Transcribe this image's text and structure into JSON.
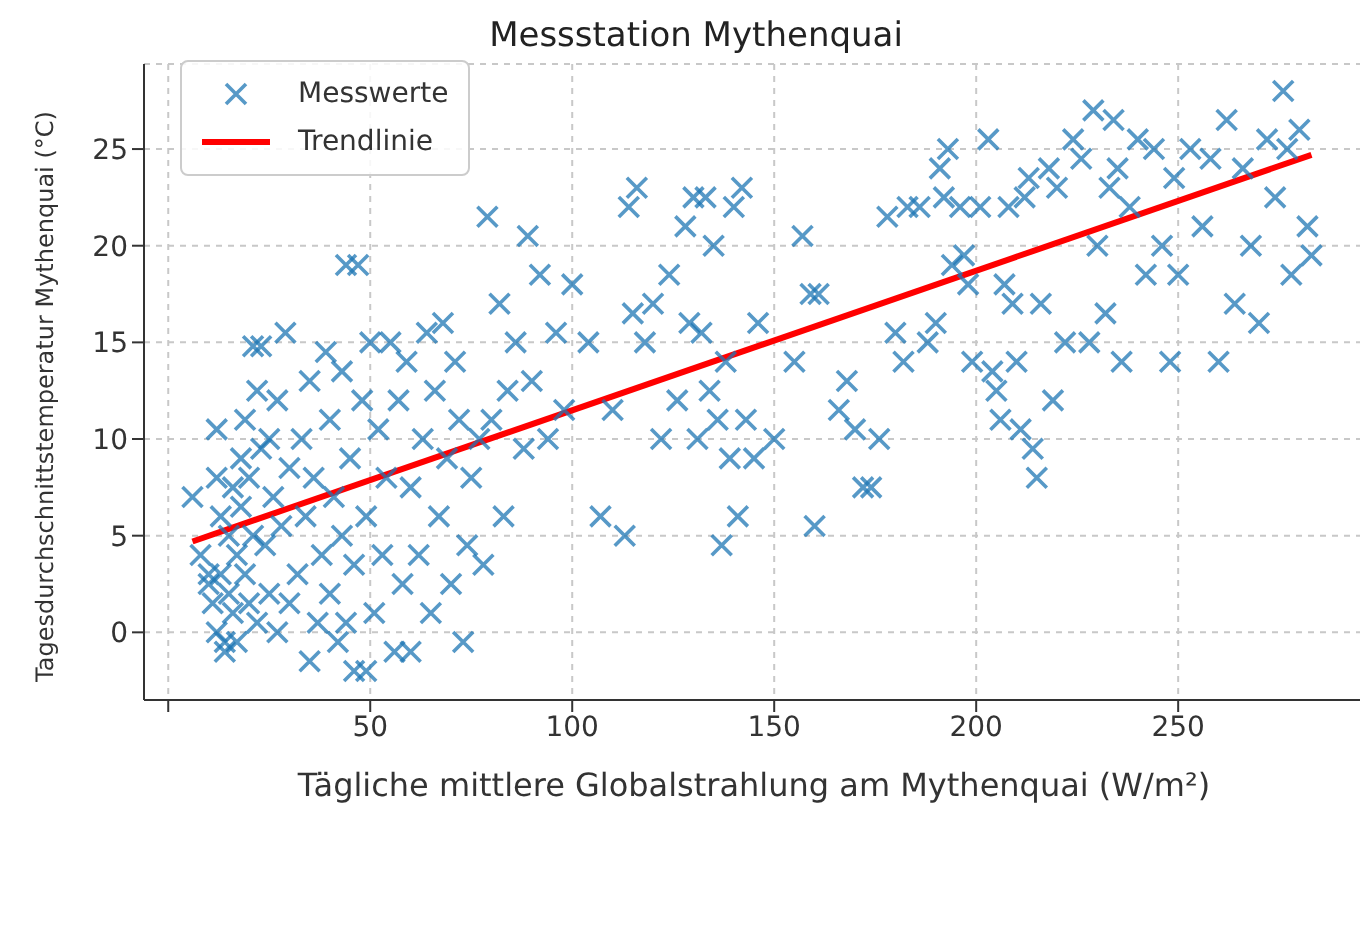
{
  "chart_data": {
    "type": "scatter",
    "title": "Messstation Mythenquai",
    "xlabel": "Tägliche mittlere Globalstrahlung am Mythenquai (W/m²)",
    "ylabel": "Tagesdurchschnittstemperatur Mythenquai (°C)",
    "xlim": [
      -6,
      296
    ],
    "ylim": [
      -3.5,
      29.4
    ],
    "xticks": [
      {
        "value": 0,
        "label": null
      },
      50,
      100,
      150,
      200,
      250
    ],
    "yticks": [
      0,
      5,
      10,
      15,
      20,
      25
    ],
    "grid": true,
    "legend": "top left",
    "series": [
      {
        "name": "Messwerte",
        "marker": "cross",
        "color": "#1f77b4",
        "x": [
          6,
          8,
          10,
          10,
          11,
          12,
          12,
          12,
          13,
          13,
          14,
          14,
          15,
          15,
          16,
          16,
          17,
          17,
          18,
          18,
          19,
          19,
          20,
          20,
          21,
          21,
          22,
          22,
          23,
          23,
          24,
          25,
          25,
          26,
          27,
          27,
          28,
          29,
          30,
          30,
          32,
          33,
          34,
          35,
          35,
          36,
          37,
          38,
          39,
          40,
          40,
          41,
          42,
          43,
          43,
          44,
          44,
          45,
          46,
          46,
          47,
          48,
          49,
          49,
          50,
          51,
          52,
          53,
          54,
          55,
          56,
          57,
          58,
          59,
          60,
          60,
          62,
          63,
          64,
          65,
          66,
          67,
          68,
          69,
          70,
          71,
          72,
          73,
          74,
          75,
          77,
          78,
          79,
          80,
          82,
          83,
          84,
          86,
          88,
          89,
          90,
          92,
          94,
          96,
          98,
          100,
          104,
          107,
          110,
          113,
          114,
          115,
          116,
          118,
          120,
          122,
          124,
          126,
          128,
          129,
          130,
          131,
          132,
          133,
          134,
          135,
          136,
          137,
          138,
          139,
          140,
          141,
          142,
          143,
          145,
          146,
          150,
          155,
          157,
          159,
          160,
          161,
          166,
          168,
          170,
          172,
          174,
          176,
          178,
          180,
          182,
          183,
          186,
          188,
          190,
          191,
          192,
          193,
          194,
          196,
          197,
          198,
          199,
          201,
          203,
          204,
          205,
          206,
          207,
          208,
          209,
          210,
          211,
          212,
          213,
          214,
          215,
          216,
          218,
          219,
          220,
          222,
          224,
          226,
          228,
          229,
          230,
          232,
          233,
          234,
          235,
          236,
          238,
          240,
          242,
          244,
          246,
          248,
          249,
          250,
          253,
          256,
          258,
          260,
          262,
          264,
          266,
          268,
          270,
          272,
          274,
          276,
          277,
          278,
          280,
          282,
          283
        ],
        "values": [
          7,
          4,
          2.5,
          3,
          1.5,
          0,
          8,
          10.5,
          6,
          3,
          -0.5,
          -1,
          5,
          2,
          7.5,
          1,
          4,
          -0.5,
          9,
          6.5,
          11,
          3,
          8,
          1.5,
          14.8,
          5,
          12.5,
          0.5,
          14.8,
          9.5,
          4.5,
          10,
          2,
          7,
          12,
          0,
          5.5,
          15.5,
          8.5,
          1.5,
          3,
          10,
          6,
          -1.5,
          13,
          8,
          0.5,
          4,
          14.5,
          11,
          2,
          7,
          -0.5,
          13.5,
          5,
          19,
          0.5,
          9,
          3.5,
          -2,
          19,
          12,
          -2,
          6,
          15,
          1,
          10.5,
          4,
          8,
          15,
          -1,
          12,
          2.5,
          14,
          7.5,
          -1,
          4,
          10,
          15.5,
          1,
          12.5,
          6,
          16,
          9,
          2.5,
          14,
          11,
          -0.5,
          4.5,
          8,
          10,
          3.5,
          21.5,
          11,
          17,
          6,
          12.5,
          15,
          9.5,
          20.5,
          13,
          18.5,
          10,
          15.5,
          11.5,
          18,
          15,
          6,
          11.5,
          5,
          22,
          16.5,
          23,
          15,
          17,
          10,
          18.5,
          12,
          21,
          16,
          22.5,
          10,
          15.5,
          22.5,
          12.5,
          20,
          11,
          4.5,
          14,
          9,
          22,
          6,
          23,
          11,
          9,
          16,
          10,
          14,
          20.5,
          17.5,
          5.5,
          17.5,
          11.5,
          13,
          10.5,
          7.5,
          7.5,
          10,
          21.5,
          15.5,
          14,
          22,
          22,
          15,
          16,
          24,
          22.5,
          25,
          19,
          22,
          19.5,
          18,
          14,
          22,
          25.5,
          13.5,
          12.5,
          11,
          18,
          22,
          17,
          14,
          10.5,
          22.5,
          23.5,
          9.5,
          8,
          17,
          24,
          12,
          23,
          15,
          25.5,
          24.5,
          15,
          27,
          20,
          16.5,
          23,
          26.5,
          24,
          14,
          22,
          25.5,
          18.5,
          25,
          20,
          14,
          23.5,
          18.5,
          25,
          21,
          24.5,
          14,
          26.5,
          17,
          24,
          20,
          16,
          25.5,
          22.5,
          28,
          25,
          18.5,
          26,
          21,
          19.5
        ]
      },
      {
        "name": "Trendlinie",
        "type": "line",
        "marker": "none",
        "color": "#ff0000",
        "x": [
          6,
          283
        ],
        "values": [
          4.7,
          24.7
        ]
      }
    ]
  }
}
